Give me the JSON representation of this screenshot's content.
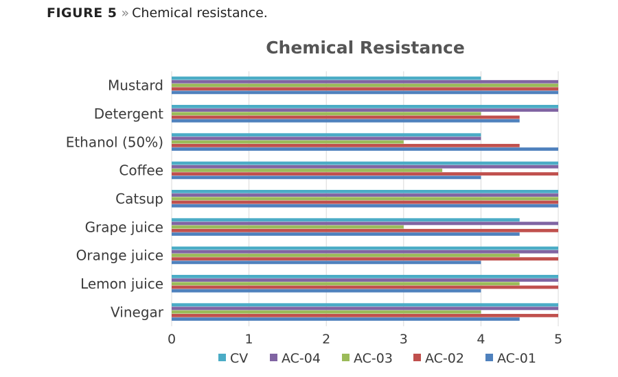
{
  "caption": {
    "figure": "FIGURE 5",
    "separator": "»",
    "text": "Chemical resistance."
  },
  "chart_data": {
    "type": "bar",
    "orientation": "horizontal",
    "title": "Chemical Resistance",
    "categories": [
      "Mustard",
      "Detergent",
      "Ethanol (50%)",
      "Coffee",
      "Catsup",
      "Grape juice",
      "Orange juice",
      "Lemon juice",
      "Vinegar"
    ],
    "series": [
      {
        "name": "CV",
        "color": "#4bacc6",
        "values": [
          4,
          5,
          4,
          5,
          5,
          4.5,
          5,
          5,
          5
        ]
      },
      {
        "name": "AC-04",
        "color": "#8064a2",
        "values": [
          5,
          5,
          4,
          5,
          5,
          5,
          5,
          5,
          5
        ]
      },
      {
        "name": "AC-03",
        "color": "#9bbb59",
        "values": [
          5,
          4,
          3,
          3.5,
          5,
          3,
          4.5,
          4.5,
          4
        ]
      },
      {
        "name": "AC-02",
        "color": "#c0504d",
        "values": [
          5,
          4.5,
          4.5,
          5,
          5,
          5,
          5,
          5,
          5
        ]
      },
      {
        "name": "AC-01",
        "color": "#4f81bd",
        "values": [
          5,
          4.5,
          5,
          4,
          5,
          4.5,
          4,
          4,
          4.5
        ]
      }
    ],
    "xlim": [
      0,
      5
    ],
    "xticks": [
      "0",
      "1",
      "2",
      "3",
      "4",
      "5"
    ],
    "grid": true,
    "legend": "bottom"
  }
}
